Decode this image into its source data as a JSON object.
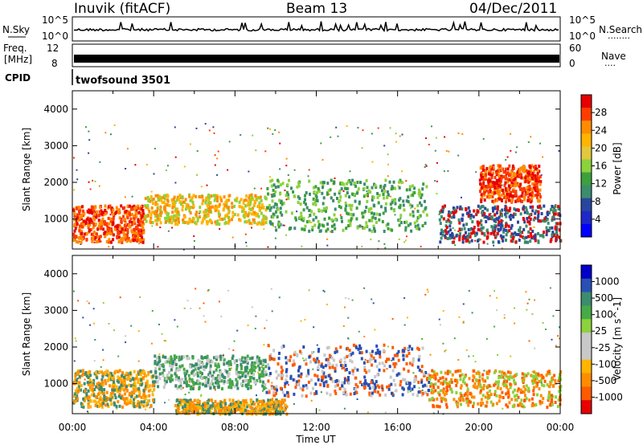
{
  "header": {
    "station": "Inuvik (fitACF)",
    "beam": "Beam 13",
    "date": "04/Dec/2011"
  },
  "strips": {
    "nsky_label": "N.Sky",
    "nsearch_label": "N.Search",
    "nsearch_dots": "........",
    "freq_label_1": "Freq.",
    "freq_label_2": "[MHz]",
    "nave_label": "Nave",
    "nave_dots": "....",
    "cpid_label": "CPID",
    "cpid_value": "twofsound 3501",
    "noise_left_ticks": [
      "10^5",
      "10^0"
    ],
    "noise_right_ticks": [
      "10^5",
      "10^0"
    ],
    "freq_left_ticks": [
      "12",
      "8"
    ],
    "nave_right_ticks": [
      "60",
      "0"
    ]
  },
  "chart_data": [
    {
      "type": "heatmap",
      "title": "",
      "xlabel": "",
      "ylabel": "Slant Range [km]",
      "x_ticks": [
        "00:00",
        "04:00",
        "08:00",
        "12:00",
        "16:00",
        "20:00",
        "00:00"
      ],
      "y_ticks": [
        1000,
        2000,
        3000,
        4000
      ],
      "ylim": [
        180,
        4500
      ],
      "colorbar": {
        "label": "Power [dB]",
        "ticks": [
          "28",
          "24",
          "20",
          "16",
          "12",
          "8",
          "4"
        ],
        "colors": [
          "#e60000",
          "#ff3c00",
          "#ff8c00",
          "#ffb400",
          "#e1c83c",
          "#8cd23c",
          "#3ca03c",
          "#3c8c6e",
          "#2846a0",
          "#1e28c8",
          "#0000ff"
        ]
      },
      "scatter_regions": [
        {
          "t_start": 0.0,
          "t_end": 3.5,
          "r_low": 400,
          "r_high": 1400,
          "level": "28"
        },
        {
          "t_start": 3.5,
          "t_end": 9.5,
          "r_low": 900,
          "r_high": 1700,
          "level": "24-28"
        },
        {
          "t_start": 9.5,
          "t_end": 17.5,
          "r_low": 700,
          "r_high": 2100,
          "level": "12-28"
        },
        {
          "t_start": 18.0,
          "t_end": 24.0,
          "r_low": 400,
          "r_high": 1400,
          "level": "28"
        },
        {
          "t_start": 20.0,
          "t_end": 23.0,
          "r_low": 1500,
          "r_high": 2500,
          "level": "28"
        }
      ]
    },
    {
      "type": "heatmap",
      "title": "",
      "xlabel": "Time UT",
      "ylabel": "Slant Range [km]",
      "x_ticks": [
        "00:00",
        "04:00",
        "08:00",
        "12:00",
        "16:00",
        "20:00",
        "00:00"
      ],
      "y_ticks": [
        1000,
        2000,
        3000,
        4000
      ],
      "ylim": [
        180,
        4500
      ],
      "colorbar": {
        "label": "Velocity [m s^-1]",
        "ticks": [
          "1000",
          "500",
          "100",
          "25",
          "-25",
          "-100",
          "-500",
          "-1000"
        ],
        "colors": [
          "#0000c8",
          "#2850b4",
          "#3c8c6e",
          "#46aa46",
          "#8cd23c",
          "#c8c8c8",
          "#c8c8c8",
          "#ffb400",
          "#ff8c00",
          "#ff5a00",
          "#e60000"
        ]
      },
      "scatter_regions": [
        {
          "t_start": 0.0,
          "t_end": 4.0,
          "r_low": 400,
          "r_high": 1400,
          "level": "-100 to -500"
        },
        {
          "t_start": 4.0,
          "t_end": 9.5,
          "r_low": 900,
          "r_high": 1800,
          "level": "25 to 100"
        },
        {
          "t_start": 9.5,
          "t_end": 17.5,
          "r_low": 700,
          "r_high": 2100,
          "level": "100 to 1000"
        },
        {
          "t_start": 17.5,
          "t_end": 24.0,
          "r_low": 400,
          "r_high": 1400,
          "level": "-100 to 100"
        },
        {
          "t_start": 5.0,
          "t_end": 10.5,
          "r_low": 200,
          "r_high": 600,
          "level": "-25 to 25"
        }
      ]
    }
  ]
}
